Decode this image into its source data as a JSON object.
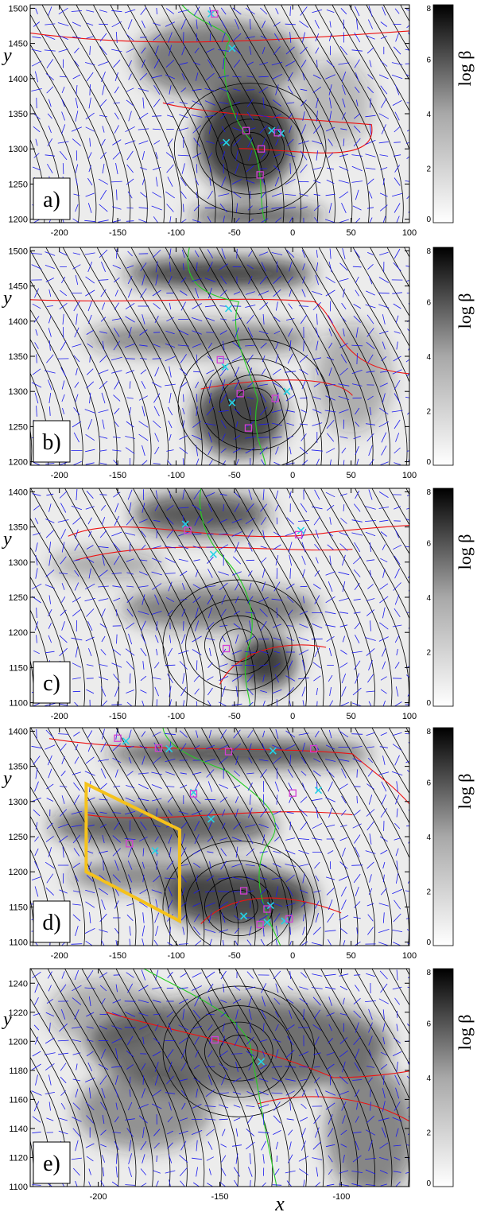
{
  "xlabel": "x",
  "ylabel": "y",
  "colorbar": {
    "label": "log β",
    "min": 0,
    "max": 8,
    "ticks": [
      0,
      2,
      4,
      6,
      8
    ]
  },
  "chart_data": [
    {
      "type": "heatmap",
      "panel_label": "a)",
      "xlim": [
        -225,
        100
      ],
      "ylim": [
        1195,
        1505
      ],
      "xticks": [
        -200,
        -150,
        -100,
        -50,
        0,
        50,
        100
      ],
      "yticks": [
        1200,
        1250,
        1300,
        1350,
        1400,
        1450,
        1500
      ],
      "nulls": [
        {
          "kind": "x",
          "x": -70,
          "y": 1492
        },
        {
          "kind": "x",
          "x": -52,
          "y": 1443
        },
        {
          "kind": "x",
          "x": -57,
          "y": 1309
        },
        {
          "kind": "x",
          "x": -18,
          "y": 1326
        },
        {
          "kind": "x",
          "x": -10,
          "y": 1322
        },
        {
          "kind": "o",
          "x": -67,
          "y": 1492
        },
        {
          "kind": "o",
          "x": -40,
          "y": 1326
        },
        {
          "kind": "o",
          "x": -27,
          "y": 1300
        },
        {
          "kind": "o",
          "x": -28,
          "y": 1263
        },
        {
          "kind": "o",
          "x": -13,
          "y": 1323
        }
      ]
    },
    {
      "type": "heatmap",
      "panel_label": "b)",
      "xlim": [
        -225,
        100
      ],
      "ylim": [
        1195,
        1505
      ],
      "xticks": [
        -200,
        -150,
        -100,
        -50,
        0,
        50,
        100
      ],
      "yticks": [
        1200,
        1250,
        1300,
        1350,
        1400,
        1450,
        1500
      ],
      "nulls": [
        {
          "kind": "x",
          "x": -55,
          "y": 1418
        },
        {
          "kind": "x",
          "x": -58,
          "y": 1335
        },
        {
          "kind": "x",
          "x": -52,
          "y": 1284
        },
        {
          "kind": "x",
          "x": -5,
          "y": 1300
        },
        {
          "kind": "o",
          "x": -62,
          "y": 1345
        },
        {
          "kind": "o",
          "x": -45,
          "y": 1297
        },
        {
          "kind": "o",
          "x": -15,
          "y": 1290
        },
        {
          "kind": "o",
          "x": -38,
          "y": 1248
        }
      ]
    },
    {
      "type": "heatmap",
      "panel_label": "c)",
      "xlim": [
        -225,
        100
      ],
      "ylim": [
        1095,
        1405
      ],
      "xticks": [
        -200,
        -150,
        -100,
        -50,
        0,
        50,
        100
      ],
      "yticks": [
        1100,
        1150,
        1200,
        1250,
        1300,
        1350,
        1400
      ],
      "nulls": [
        {
          "kind": "x",
          "x": -92,
          "y": 1354
        },
        {
          "kind": "x",
          "x": -68,
          "y": 1311
        },
        {
          "kind": "x",
          "x": 7,
          "y": 1345
        },
        {
          "kind": "o",
          "x": -90,
          "y": 1345
        },
        {
          "kind": "o",
          "x": 5,
          "y": 1339
        },
        {
          "kind": "o",
          "x": -57,
          "y": 1177
        }
      ]
    },
    {
      "type": "heatmap",
      "panel_label": "d)",
      "xlim": [
        -225,
        100
      ],
      "ylim": [
        1095,
        1405
      ],
      "xticks": [
        -200,
        -150,
        -100,
        -50,
        0,
        50,
        100
      ],
      "yticks": [
        1100,
        1150,
        1200,
        1250,
        1300,
        1350,
        1400
      ],
      "highlight_polygon": [
        [
          -177,
          1325
        ],
        [
          -97,
          1260
        ],
        [
          -97,
          1130
        ],
        [
          -177,
          1200
        ]
      ],
      "nulls": [
        {
          "kind": "x",
          "x": -143,
          "y": 1386
        },
        {
          "kind": "x",
          "x": -106,
          "y": 1375
        },
        {
          "kind": "x",
          "x": -17,
          "y": 1372
        },
        {
          "kind": "x",
          "x": -85,
          "y": 1313
        },
        {
          "kind": "x",
          "x": -70,
          "y": 1275
        },
        {
          "kind": "x",
          "x": 22,
          "y": 1316
        },
        {
          "kind": "x",
          "x": -118,
          "y": 1230
        },
        {
          "kind": "x",
          "x": -42,
          "y": 1137
        },
        {
          "kind": "x",
          "x": -22,
          "y": 1128
        },
        {
          "kind": "x",
          "x": -19,
          "y": 1152
        },
        {
          "kind": "x",
          "x": -7,
          "y": 1130
        },
        {
          "kind": "o",
          "x": -150,
          "y": 1390
        },
        {
          "kind": "o",
          "x": -115,
          "y": 1376
        },
        {
          "kind": "o",
          "x": -55,
          "y": 1371
        },
        {
          "kind": "o",
          "x": 18,
          "y": 1375
        },
        {
          "kind": "o",
          "x": -85,
          "y": 1311
        },
        {
          "kind": "o",
          "x": 0,
          "y": 1312
        },
        {
          "kind": "o",
          "x": -140,
          "y": 1240
        },
        {
          "kind": "o",
          "x": -42,
          "y": 1173
        },
        {
          "kind": "o",
          "x": -22,
          "y": 1147
        },
        {
          "kind": "o",
          "x": -28,
          "y": 1125
        },
        {
          "kind": "o",
          "x": -3,
          "y": 1133
        }
      ]
    },
    {
      "type": "heatmap",
      "panel_label": "e)",
      "xlim": [
        -228,
        -72
      ],
      "ylim": [
        1100,
        1250
      ],
      "xticks": [
        -200,
        -150,
        -100
      ],
      "yticks": [
        1100,
        1120,
        1140,
        1160,
        1180,
        1200,
        1220,
        1240
      ],
      "nulls": [
        {
          "kind": "x",
          "x": -133,
          "y": 1186
        },
        {
          "kind": "o",
          "x": -152,
          "y": 1201
        }
      ]
    }
  ]
}
